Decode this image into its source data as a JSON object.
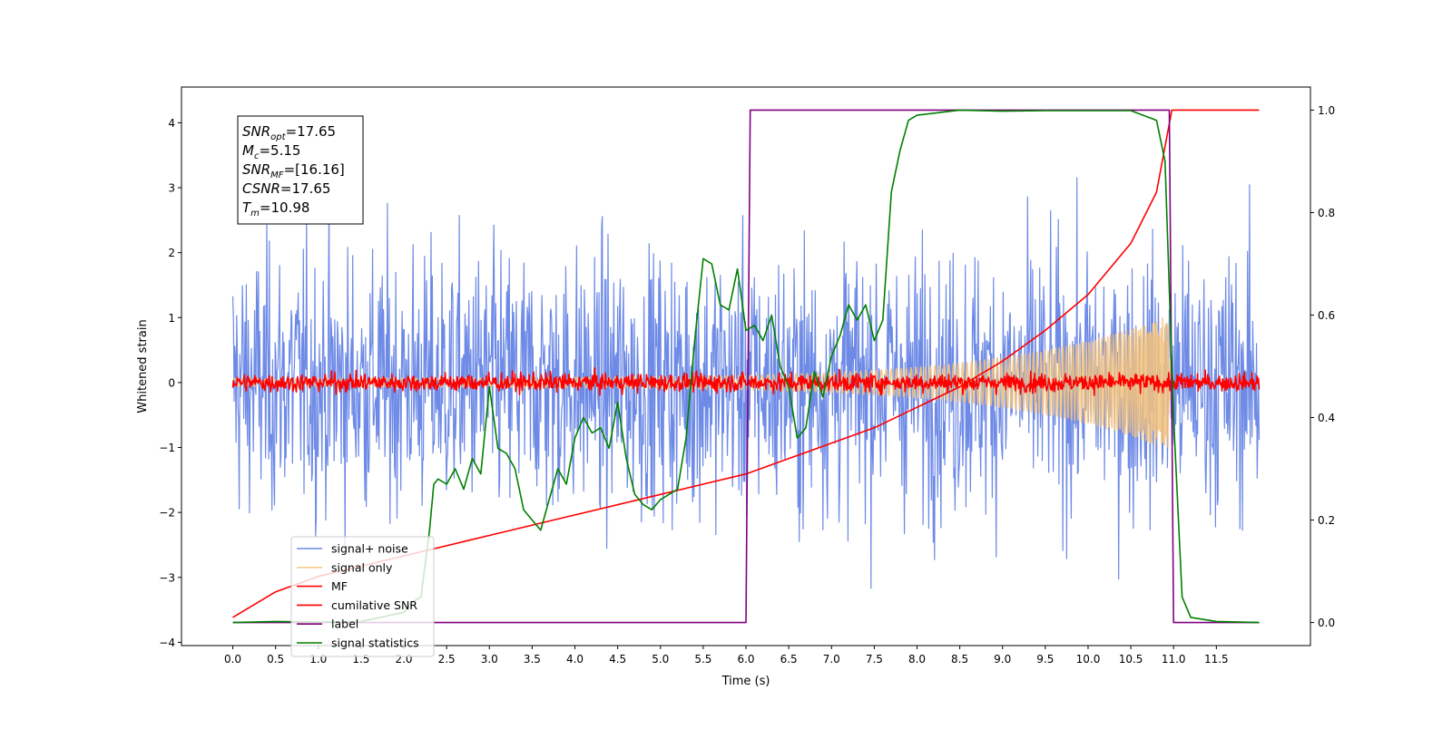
{
  "chart_data": {
    "type": "line",
    "xlabel": "Time (s)",
    "ylabel": "Whitened strain",
    "xlim": [
      -0.6,
      12.6
    ],
    "ylim": [
      -4.05,
      4.55
    ],
    "y2lim": [
      -0.045,
      1.045
    ],
    "xticks": [
      "0.0",
      "0.5",
      "1.0",
      "1.5",
      "2.0",
      "2.5",
      "3.0",
      "3.5",
      "4.0",
      "4.5",
      "5.0",
      "5.5",
      "6.0",
      "6.5",
      "7.0",
      "7.5",
      "8.0",
      "8.5",
      "9.0",
      "9.5",
      "10.0",
      "10.5",
      "11.0",
      "11.5"
    ],
    "yticks": [
      "−4",
      "−3",
      "−2",
      "−1",
      "0",
      "1",
      "2",
      "3",
      "4"
    ],
    "y2ticks": [
      "0.0",
      "0.2",
      "0.4",
      "0.6",
      "0.8",
      "1.0"
    ],
    "grid": false,
    "legend_position": "lower-left",
    "annotation": [
      {
        "base": "SNR",
        "sub": "opt",
        "value": "=17.65"
      },
      {
        "base": "M",
        "sub": "c",
        "value": "=5.15"
      },
      {
        "base": "SNR",
        "sub": "MF",
        "value": "=[16.16]"
      },
      {
        "base": "CSNR",
        "sub": "",
        "value": "=17.65"
      },
      {
        "base": "T",
        "sub": "m",
        "value": "=10.98"
      }
    ],
    "series": [
      {
        "name": "signal+ noise",
        "axis": "left",
        "color": "#6d8ae6",
        "style": "noise",
        "t_start": 0.0,
        "t_end": 12.0,
        "amplitude": 1.0
      },
      {
        "name": "signal only",
        "axis": "left",
        "color": "#f5c27a",
        "style": "chirp",
        "t_start": 0.0,
        "t_end": 10.98,
        "amplitude_start": 0.06,
        "amplitude_end": 1.0
      },
      {
        "name": "MF",
        "axis": "left",
        "color": "#ff0000",
        "style": "noise",
        "t_start": 0.0,
        "t_end": 12.0,
        "amplitude": 0.07
      },
      {
        "name": "cumilative SNR",
        "axis": "right",
        "color": "#ff0000",
        "x": [
          0.0,
          0.5,
          1.0,
          2.0,
          3.0,
          4.0,
          5.0,
          6.0,
          7.0,
          7.5,
          8.0,
          8.5,
          9.0,
          9.5,
          10.0,
          10.5,
          10.8,
          10.98,
          12.0
        ],
        "y": [
          0.01,
          0.06,
          0.09,
          0.13,
          0.17,
          0.21,
          0.25,
          0.29,
          0.35,
          0.38,
          0.42,
          0.46,
          0.51,
          0.57,
          0.64,
          0.74,
          0.84,
          1.0,
          1.0
        ]
      },
      {
        "name": "label",
        "axis": "right",
        "color": "#800080",
        "x": [
          0.0,
          6.0,
          6.05,
          10.95,
          11.0,
          12.0
        ],
        "y": [
          0.0,
          0.0,
          1.0,
          1.0,
          0.0,
          0.0
        ]
      },
      {
        "name": "signal statistics",
        "axis": "right",
        "color": "#008000",
        "x": [
          0.0,
          0.5,
          1.0,
          1.5,
          2.0,
          2.1,
          2.2,
          2.3,
          2.35,
          2.4,
          2.5,
          2.6,
          2.7,
          2.8,
          2.9,
          3.0,
          3.1,
          3.2,
          3.3,
          3.4,
          3.5,
          3.6,
          3.7,
          3.8,
          3.9,
          4.0,
          4.1,
          4.2,
          4.3,
          4.4,
          4.5,
          4.6,
          4.7,
          4.8,
          4.9,
          5.0,
          5.1,
          5.2,
          5.3,
          5.4,
          5.5,
          5.6,
          5.7,
          5.8,
          5.9,
          6.0,
          6.1,
          6.2,
          6.3,
          6.4,
          6.5,
          6.6,
          6.7,
          6.8,
          6.9,
          7.0,
          7.1,
          7.2,
          7.3,
          7.4,
          7.5,
          7.6,
          7.7,
          7.8,
          7.9,
          8.0,
          8.5,
          9.0,
          9.5,
          10.0,
          10.5,
          10.8,
          10.9,
          11.0,
          11.1,
          11.2,
          11.5,
          12.0
        ],
        "y": [
          0.0,
          0.002,
          0.001,
          0.002,
          0.02,
          0.04,
          0.05,
          0.18,
          0.27,
          0.28,
          0.27,
          0.3,
          0.26,
          0.32,
          0.29,
          0.46,
          0.34,
          0.33,
          0.3,
          0.22,
          0.2,
          0.18,
          0.24,
          0.3,
          0.27,
          0.36,
          0.4,
          0.37,
          0.38,
          0.34,
          0.43,
          0.32,
          0.25,
          0.23,
          0.22,
          0.24,
          0.25,
          0.26,
          0.36,
          0.55,
          0.71,
          0.7,
          0.62,
          0.61,
          0.69,
          0.57,
          0.58,
          0.55,
          0.6,
          0.5,
          0.46,
          0.36,
          0.38,
          0.49,
          0.44,
          0.52,
          0.56,
          0.62,
          0.59,
          0.62,
          0.55,
          0.59,
          0.84,
          0.92,
          0.98,
          0.99,
          1.0,
          0.998,
          0.999,
          0.999,
          0.999,
          0.98,
          0.9,
          0.4,
          0.05,
          0.01,
          0.002,
          0.0
        ]
      }
    ]
  }
}
